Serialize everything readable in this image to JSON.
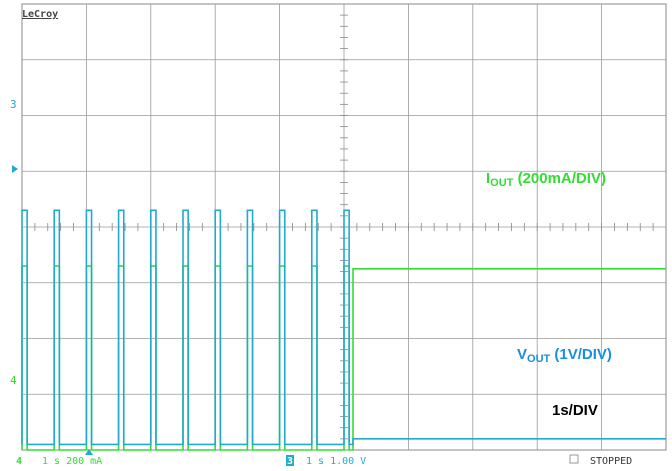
{
  "brand": "LeCroy",
  "chart_data": {
    "type": "line",
    "grid": true,
    "x": {
      "unit": "s",
      "per_div": 1,
      "divisions": 10
    },
    "series": [
      {
        "name": "IOUT",
        "channel": 4,
        "color": "#33dd33",
        "scale_label": "(200mA/DIV)",
        "level_high_div": 3.3,
        "level_low_div": 0.0,
        "pulse_starts_div": [
          0.0,
          0.5,
          1.0,
          1.5,
          2.0,
          2.5,
          3.0,
          3.5,
          4.0,
          4.5,
          5.0
        ],
        "pulse_width_div": 0.08,
        "steady_after_div": 5.14,
        "steady_level_div": 3.25
      },
      {
        "name": "VOUT",
        "channel": 3,
        "color": "#22aacc",
        "scale_label": "(1V/DIV)",
        "level_high_div": 4.3,
        "level_low_div": 0.1,
        "pulse_starts_div": [
          0.0,
          0.5,
          1.0,
          1.5,
          2.0,
          2.5,
          3.0,
          3.5,
          4.0,
          4.5,
          5.0
        ],
        "pulse_width_div": 0.08,
        "steady_after_div": 5.14,
        "steady_level_div": 0.2
      }
    ],
    "iout_label": {
      "main": "I",
      "sub": "OUT",
      "rest": " (200mA/DIV)"
    },
    "vout_label": {
      "main": "V",
      "sub": "OUT",
      "rest": " (1V/DIV)"
    },
    "timebase_label": "1s/DIV"
  },
  "status": {
    "ch4_num": "4",
    "ch4_text": "1 s 200 mA",
    "ch3_num": "3",
    "ch3_text": "1 s 1.00 V",
    "state": "STOPPED"
  },
  "markers": {
    "ch3": "3",
    "ch4": "4"
  }
}
